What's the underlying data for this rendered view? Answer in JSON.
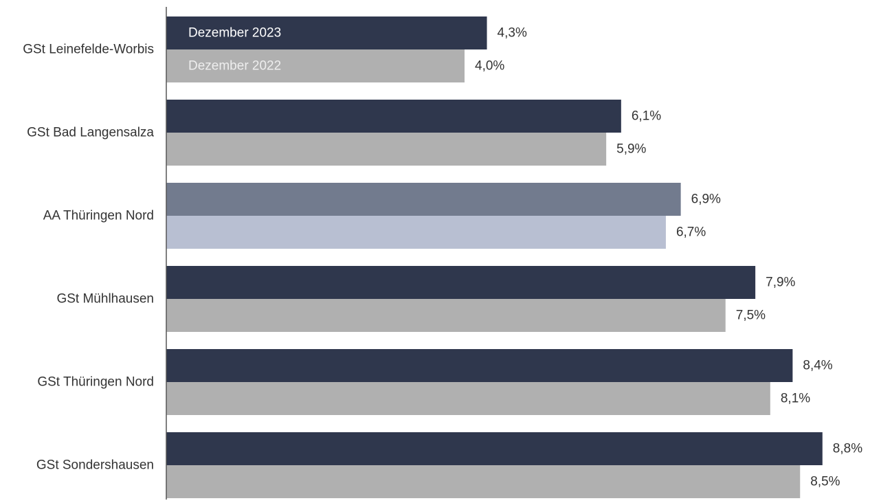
{
  "chart_data": {
    "type": "bar",
    "orientation": "horizontal",
    "categories": [
      "GSt Leinefelde-Worbis",
      "GSt Bad Langensalza",
      "AA Thüringen Nord",
      "GSt Mühlhausen",
      "GSt Thüringen Nord",
      "GSt Sondershausen"
    ],
    "series": [
      {
        "name": "Dezember 2023",
        "values": [
          4.3,
          6.1,
          6.9,
          7.9,
          8.4,
          8.8
        ],
        "labels": [
          "4,3%",
          "6,1%",
          "6,9%",
          "7,9%",
          "8,4%",
          "8,8%"
        ],
        "color": "#2f374d"
      },
      {
        "name": "Dezember 2022",
        "values": [
          4.0,
          5.9,
          6.7,
          7.5,
          8.1,
          8.5
        ],
        "labels": [
          "4,0%",
          "5,9%",
          "6,7%",
          "7,5%",
          "8,1%",
          "8,5%"
        ],
        "color": "#b0b0b0"
      }
    ],
    "highlight": {
      "category": "AA Thüringen Nord",
      "colors": [
        "#727b8e",
        "#b8bfd2"
      ]
    },
    "legend": {
      "placement": "inside first bar group",
      "text_colors": [
        "#ffffff",
        "#eeeeee"
      ]
    },
    "value_unit": "%",
    "xlim": [
      0,
      10
    ],
    "grid": false,
    "xlabel": "",
    "ylabel": ""
  }
}
